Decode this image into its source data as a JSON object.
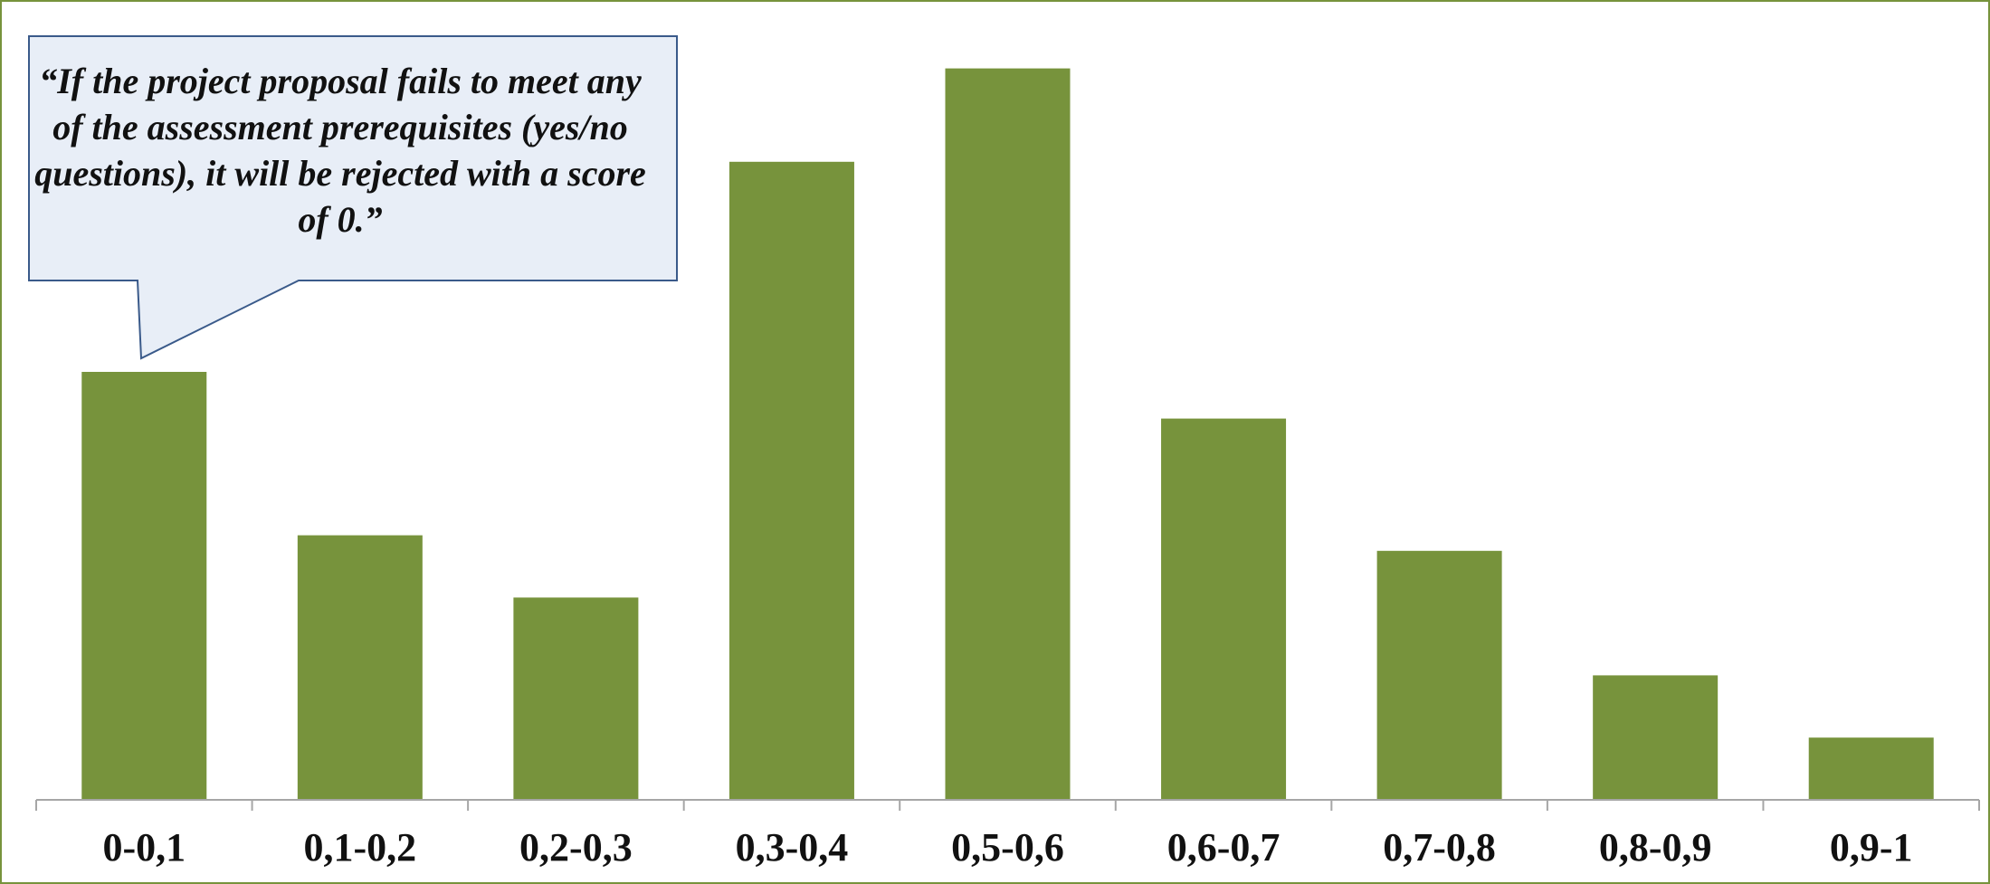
{
  "colors": {
    "bar": "#77933c",
    "frame": "#77933c",
    "axis": "#a6a6a6",
    "callout_fill": "#e8eef7",
    "callout_stroke": "#3a5a8a"
  },
  "annotation": "“If the project proposal fails to meet any of the assessment prerequisites (yes/no questions), it will be rejected with a score of 0.”",
  "chart_data": {
    "type": "bar",
    "categories": [
      "0-0,1",
      "0,1-0,2",
      "0,2-0,3",
      "0,3-0,4",
      "0,5-0,6",
      "0,6-0,7",
      "0,7-0,8",
      "0,8-0,9",
      "0,9-1"
    ],
    "values": [
      55,
      34,
      26,
      82,
      94,
      49,
      32,
      16,
      8
    ],
    "ylim": [
      0,
      100
    ],
    "title": "",
    "xlabel": "",
    "ylabel": "",
    "grid": false,
    "annotations": [
      "“If the project proposal fails to meet any of the assessment prerequisites (yes/no questions), it will be rejected with a score of 0.”"
    ]
  }
}
